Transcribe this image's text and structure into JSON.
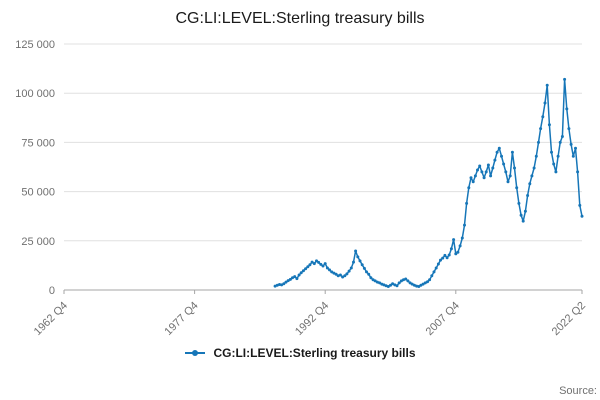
{
  "title": "CG:LI:LEVEL:Sterling treasury bills",
  "legend": {
    "label": "CG:LI:LEVEL:Sterling treasury bills"
  },
  "source_label": "Source:",
  "colors": {
    "accent": "#1676b8",
    "grid": "#e0e0e0",
    "axis": "#a6a6a6",
    "tick_text": "#707070"
  },
  "chart_data": {
    "type": "line",
    "title": "CG:LI:LEVEL:Sterling treasury bills",
    "xlabel": "",
    "ylabel": "",
    "x_range": [
      "1962 Q4",
      "2022 Q2"
    ],
    "x_ticks": [
      "1962 Q4",
      "1977 Q4",
      "1992 Q4",
      "2007 Q4",
      "2022 Q2"
    ],
    "y_ticks": [
      {
        "value": 0,
        "label": "0"
      },
      {
        "value": 25000,
        "label": "25 000"
      },
      {
        "value": 50000,
        "label": "50 000"
      },
      {
        "value": 75000,
        "label": "75 000"
      },
      {
        "value": 100000,
        "label": "100 000"
      },
      {
        "value": 125000,
        "label": "125 000"
      }
    ],
    "ylim": [
      0,
      125000
    ],
    "grid": "horizontal",
    "legend_position": "bottom",
    "marker": "circle",
    "series": [
      {
        "name": "CG:LI:LEVEL:Sterling treasury bills",
        "frequency": "quarterly",
        "start_period": "1987 Q1",
        "end_period": "2022 Q2",
        "values": [
          2000,
          2400,
          2800,
          2600,
          3200,
          4000,
          4800,
          5400,
          6200,
          6800,
          5800,
          7600,
          8800,
          9800,
          10800,
          11800,
          12800,
          14200,
          13400,
          14800,
          14000,
          13000,
          12200,
          13400,
          11200,
          10200,
          9200,
          8600,
          8000,
          7200,
          7600,
          6600,
          7200,
          8200,
          9600,
          11200,
          14200,
          19800,
          16800,
          14800,
          12800,
          11000,
          9200,
          8000,
          6200,
          5200,
          4600,
          4000,
          3600,
          3000,
          2600,
          2200,
          1800,
          2400,
          3200,
          2600,
          2200,
          3600,
          4600,
          5200,
          5600,
          4600,
          3600,
          3000,
          2400,
          2000,
          1800,
          2400,
          3000,
          3600,
          4200,
          5200,
          7200,
          9200,
          11200,
          13200,
          15200,
          16200,
          17600,
          16400,
          17800,
          21000,
          25600,
          18400,
          19200,
          22400,
          26400,
          33000,
          44000,
          52000,
          57000,
          55000,
          58000,
          61000,
          63000,
          60000,
          57000,
          60000,
          63500,
          58000,
          62000,
          66000,
          70000,
          72000,
          68000,
          64000,
          60000,
          55000,
          58000,
          70000,
          62000,
          52000,
          44000,
          38000,
          35000,
          40000,
          48000,
          54000,
          58000,
          62000,
          68000,
          75000,
          82000,
          88000,
          95000,
          104000,
          84000,
          70000,
          64000,
          60000,
          68000,
          75000,
          78000,
          107000,
          92000,
          82000,
          74000,
          68000,
          72000,
          60000,
          43000,
          37500
        ]
      }
    ]
  }
}
